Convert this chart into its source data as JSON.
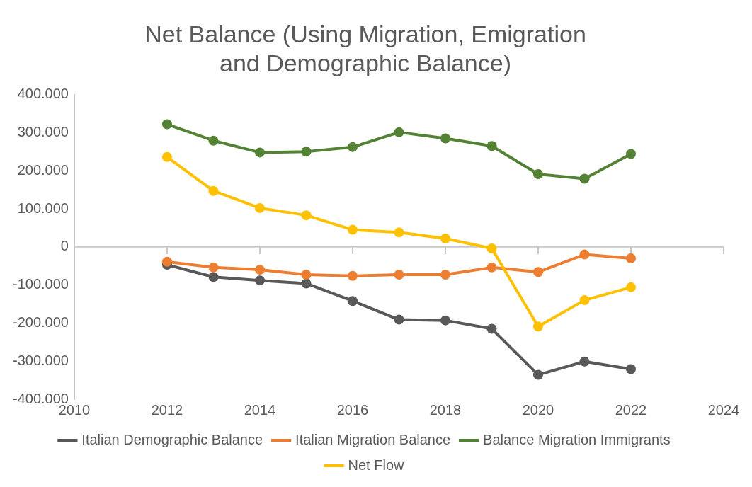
{
  "chart_data": {
    "type": "line",
    "title": "Net Balance (Using Migration, Emigration and Demographic Balance)",
    "x": [
      2012,
      2013,
      2014,
      2015,
      2016,
      2017,
      2018,
      2019,
      2020,
      2021,
      2022
    ],
    "series": [
      {
        "name": "Italian Demographic Balance",
        "color": "#595959",
        "values": [
          -47000,
          -79000,
          -88000,
          -96000,
          -142000,
          -191000,
          -193000,
          -215000,
          -336000,
          -301000,
          -321000
        ]
      },
      {
        "name": "Italian Migration Balance",
        "color": "#ed7d31",
        "values": [
          -39000,
          -54000,
          -60000,
          -73000,
          -76000,
          -73000,
          -73000,
          -54000,
          -66000,
          -20000,
          -30000
        ]
      },
      {
        "name": "Balance Migration Immigrants",
        "color": "#548235",
        "values": [
          322000,
          279000,
          248000,
          250000,
          262000,
          301000,
          285000,
          265000,
          191000,
          179000,
          244000
        ]
      },
      {
        "name": "Net Flow",
        "color": "#ffc000",
        "values": [
          236000,
          147000,
          102000,
          83000,
          45000,
          38000,
          22000,
          -4000,
          -209000,
          -140000,
          -106000
        ]
      }
    ],
    "xlim": [
      2010,
      2024
    ],
    "xticks": [
      2010,
      2012,
      2014,
      2016,
      2018,
      2020,
      2022,
      2024
    ],
    "ylim": [
      -400000,
      400000
    ],
    "yticks": [
      {
        "value": -400000,
        "label": "-400.000"
      },
      {
        "value": -300000,
        "label": "-300.000"
      },
      {
        "value": -200000,
        "label": "-200.000"
      },
      {
        "value": -100000,
        "label": "-100.000"
      },
      0,
      {
        "value": 100000,
        "label": "100.000"
      },
      {
        "value": 200000,
        "label": "200.000"
      },
      {
        "value": 300000,
        "label": "300.000"
      },
      {
        "value": 400000,
        "label": "400.000"
      }
    ],
    "ref_lines": [
      {
        "axis": "y",
        "value": 0,
        "color": "#c8c8c8"
      }
    ],
    "grid": false,
    "legend": "bottom",
    "marker": "circle",
    "line_style": "solid"
  }
}
